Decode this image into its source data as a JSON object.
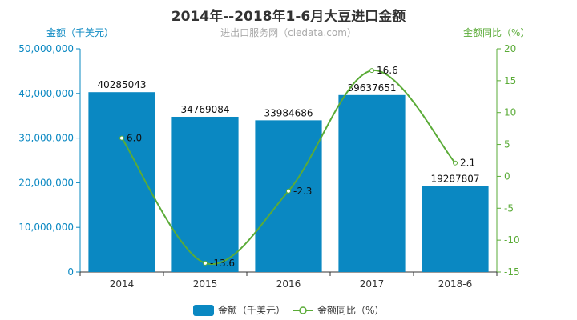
{
  "chart_data": {
    "type": "bar",
    "title": "2014年--2018年1-6月大豆进口金额",
    "subtitle": "进出口服务网（ciedata.com）",
    "categories": [
      "2014",
      "2015",
      "2016",
      "2017",
      "2018-6"
    ],
    "series": [
      {
        "name": "金额（千美元）",
        "type": "bar",
        "axis": "left",
        "values": [
          40285043,
          34769084,
          33984686,
          39637651,
          19287807
        ]
      },
      {
        "name": "金额同比（%）",
        "type": "line",
        "axis": "right",
        "values": [
          6.0,
          -13.6,
          -2.3,
          16.6,
          2.1
        ]
      }
    ],
    "ylabel": "金额（千美元）",
    "ylabel_right": "金额同比（%）",
    "ylim": [
      0,
      50000000
    ],
    "ylim_right": [
      -15,
      20
    ],
    "yticks": [
      "0",
      "10,000,000",
      "20,000,000",
      "30,000,000",
      "40,000,000",
      "50,000,000"
    ],
    "yticks_right": [
      "-15",
      "-10",
      "-5",
      "0",
      "5",
      "10",
      "15",
      "20"
    ],
    "bar_value_labels": [
      "40285043",
      "34769084",
      "33984686",
      "39637651",
      "19287807"
    ],
    "line_value_labels": [
      "6.0",
      "-13.6",
      "-2.3",
      "16.6",
      "2.1"
    ],
    "legend": [
      "金额（千美元）",
      "金额同比（%）"
    ],
    "legend_position": "bottom",
    "grid": false,
    "colors": {
      "bar": "#0a88c2",
      "line": "#5aab37",
      "left_axis": "#0a88c2",
      "right_axis": "#5aab37"
    }
  }
}
